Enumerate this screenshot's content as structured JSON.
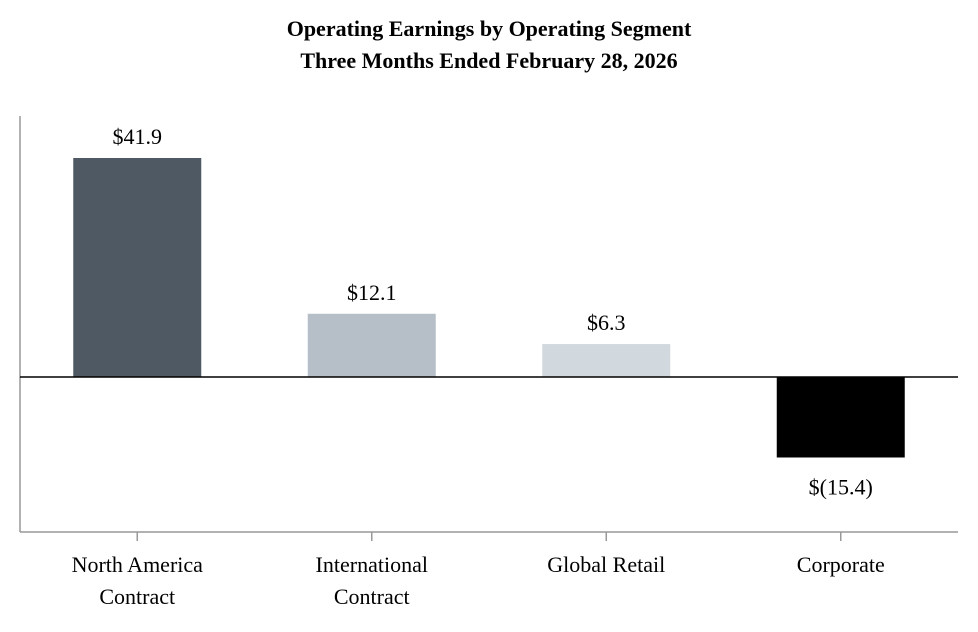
{
  "chart_data": {
    "type": "bar",
    "title": "Operating Earnings by Operating Segment",
    "subtitle": "Three Months Ended February 28, 2026",
    "categories": [
      [
        "North America",
        "Contract"
      ],
      [
        "International",
        "Contract"
      ],
      [
        "Global Retail"
      ],
      [
        "Corporate"
      ]
    ],
    "values": [
      41.9,
      12.1,
      6.3,
      -15.4
    ],
    "data_labels": [
      "$41.9",
      "$12.1",
      "$6.3",
      "$(15.4)"
    ],
    "colors": [
      "#4f5963",
      "#b6bfc7",
      "#d2d9de",
      "#000000"
    ],
    "xlabel": "",
    "ylabel": "",
    "ylim": [
      -30,
      50
    ],
    "grid": false,
    "legend": "none"
  }
}
